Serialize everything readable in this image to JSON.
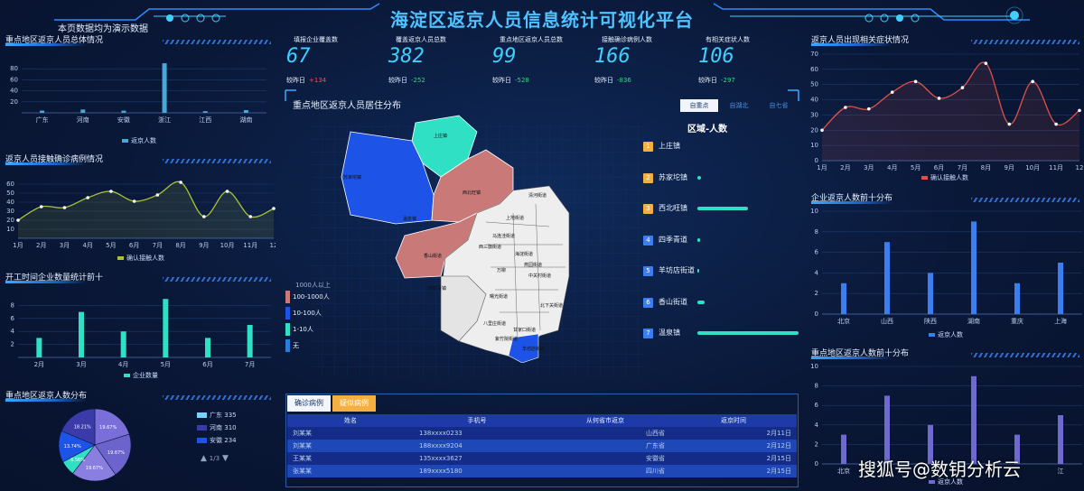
{
  "header": {
    "title": "海淀区返京人员信息统计可视化平台",
    "demo_note": "本页数据均为演示数据"
  },
  "kpis": [
    {
      "label": "填报企业覆盖数",
      "value": "67",
      "delta_label": "较昨日",
      "delta": "+134",
      "trend": "up"
    },
    {
      "label": "覆盖返京人员总数",
      "value": "382",
      "delta_label": "较昨日",
      "delta": "-252",
      "trend": "down"
    },
    {
      "label": "重点地区返京人员总数",
      "value": "99",
      "delta_label": "较昨日",
      "delta": "-528",
      "trend": "down"
    },
    {
      "label": "接触确诊病例人数",
      "value": "166",
      "delta_label": "较昨日",
      "delta": "-836",
      "trend": "down"
    },
    {
      "label": "有相关症状人数",
      "value": "106",
      "delta_label": "较昨日",
      "delta": "-297",
      "trend": "down"
    }
  ],
  "left": {
    "p1": {
      "title": "重点地区返京人员总体情况",
      "legend": "返京人数"
    },
    "p2": {
      "title": "返京人员接触确诊病例情况",
      "legend": "确认接触人数"
    },
    "p3": {
      "title": "开工时间企业数量统计前十",
      "legend": "企业数量"
    },
    "p4": {
      "title": "重点地区返京人数分布",
      "legend": [
        {
          "name": "广东",
          "value": "335"
        },
        {
          "name": "河南",
          "value": "310"
        },
        {
          "name": "安徽",
          "value": "234"
        }
      ],
      "pager": "1/3"
    }
  },
  "right": {
    "p1": {
      "title": "返京人员出现相关症状情况",
      "legend": "确认接触人数"
    },
    "p2": {
      "title": "企业返京人数前十分布",
      "legend": "返京人数"
    },
    "p3": {
      "title": "重点地区返京人数前十分布",
      "legend": "返京人数"
    }
  },
  "map": {
    "title": "重点地区返京人员居住分布",
    "tabs": [
      "自重点",
      "自湖北",
      "自七省"
    ],
    "rank_title": "区域-人数",
    "legend": [
      "1000人以上",
      "100-1000人",
      "10-100人",
      "1-10人",
      "无"
    ],
    "district_labels": [
      "上庄镇",
      "苏家坨镇",
      "西北旺镇",
      "温泉镇",
      "香山街道",
      "四季青镇",
      "清河街道",
      "上地街道",
      "西三旗街道",
      "马连洼街道",
      "燕园街道",
      "海淀街道",
      "中关村街道",
      "万柳",
      "曙光街道",
      "八里庄街道",
      "紫竹院街道",
      "北下关街道",
      "甘家口街道",
      "羊坊店街道"
    ],
    "rank": [
      {
        "no": "1",
        "name": "上庄镇",
        "pct": 0
      },
      {
        "no": "2",
        "name": "苏家坨镇",
        "pct": 4
      },
      {
        "no": "3",
        "name": "西北旺镇",
        "pct": 50
      },
      {
        "no": "4",
        "name": "四季青道",
        "pct": 3
      },
      {
        "no": "5",
        "name": "羊坊店街道",
        "pct": 1
      },
      {
        "no": "6",
        "name": "香山街道",
        "pct": 7
      },
      {
        "no": "7",
        "name": "温泉镇",
        "pct": 100
      }
    ]
  },
  "table": {
    "tabs": [
      "确诊病例",
      "疑似病例"
    ],
    "headers": [
      "姓名",
      "手机号",
      "从何省市返京",
      "返京时间"
    ],
    "rows": [
      [
        "刘某某",
        "138xxxx0233",
        "山西省",
        "2月11日"
      ],
      [
        "刘某某",
        "188xxxx9204",
        "广东省",
        "2月12日"
      ],
      [
        "王某某",
        "135xxxx3627",
        "安徽省",
        "2月15日"
      ],
      [
        "张某某",
        "189xxxx5180",
        "四川省",
        "2月15日"
      ]
    ]
  },
  "watermark": "搜狐号@数钥分析云",
  "chart_data": [
    {
      "id": "left-bar",
      "type": "bar",
      "categories": [
        "广东",
        "河南",
        "安徽",
        "浙江",
        "江西",
        "湖南"
      ],
      "ylim": [
        0,
        100
      ],
      "yticks": [
        20,
        40,
        60,
        80
      ],
      "series": [
        {
          "name": "返京人数",
          "values": [
            4,
            6,
            4,
            90,
            3,
            5
          ]
        }
      ]
    },
    {
      "id": "left-line",
      "type": "line",
      "categories": [
        "1月",
        "2月",
        "3月",
        "4月",
        "5月",
        "6月",
        "7月",
        "8月",
        "9月",
        "10月",
        "11月",
        "12"
      ],
      "ylim": [
        0,
        70
      ],
      "yticks": [
        10,
        20,
        30,
        40,
        50,
        60
      ],
      "series": [
        {
          "name": "确认接触人数",
          "values": [
            20,
            35,
            34,
            45,
            52,
            41,
            48,
            62,
            24,
            52,
            24,
            33
          ]
        }
      ]
    },
    {
      "id": "left-bar2",
      "type": "bar",
      "categories": [
        "2月",
        "3月",
        "4月",
        "5月",
        "6月",
        "7月"
      ],
      "ylim": [
        0,
        10
      ],
      "yticks": [
        2,
        4,
        6,
        8
      ],
      "series": [
        {
          "name": "企业数量",
          "values": [
            3,
            7,
            4,
            9,
            3,
            5
          ]
        }
      ]
    },
    {
      "id": "left-pie",
      "type": "pie",
      "slices": [
        {
          "label": "19.67%",
          "value": 19.67,
          "color": "#7a6fd8"
        },
        {
          "label": "19.67%",
          "value": 19.67,
          "color": "#6d63cc"
        },
        {
          "label": "19.67%",
          "value": 19.67,
          "color": "#8a7fe0"
        },
        {
          "label": "6.56%",
          "value": 6.56,
          "color": "#2fe0c4"
        },
        {
          "label": "13.74%",
          "value": 13.74,
          "color": "#1d53e6"
        },
        {
          "label": "18.21%",
          "value": 18.21,
          "color": "#3a3aa8"
        }
      ]
    },
    {
      "id": "right-line",
      "type": "line",
      "categories": [
        "1月",
        "2月",
        "3月",
        "4月",
        "5月",
        "6月",
        "7月",
        "8月",
        "9月",
        "10月",
        "11月",
        "12"
      ],
      "ylim": [
        0,
        70
      ],
      "yticks": [
        0,
        10,
        20,
        30,
        40,
        50,
        60,
        70
      ],
      "series": [
        {
          "name": "确认接触人数",
          "values": [
            20,
            35,
            34,
            45,
            52,
            41,
            48,
            64,
            24,
            52,
            24,
            33
          ]
        }
      ]
    },
    {
      "id": "right-bar1",
      "type": "bar",
      "categories": [
        "北京",
        "山西",
        "陕西",
        "湖南",
        "重庆",
        "上海"
      ],
      "ylim": [
        0,
        10
      ],
      "yticks": [
        0,
        2,
        4,
        6,
        8,
        10
      ],
      "series": [
        {
          "name": "返京人数",
          "values": [
            3,
            7,
            4,
            9,
            3,
            5
          ]
        }
      ]
    },
    {
      "id": "right-bar2",
      "type": "bar",
      "categories": [
        "北京",
        "",
        "",
        "",
        "",
        "江"
      ],
      "ylim": [
        0,
        10
      ],
      "yticks": [
        0,
        2,
        4,
        6,
        8,
        10
      ],
      "series": [
        {
          "name": "返京人数",
          "values": [
            3,
            7,
            4,
            9,
            3,
            5
          ]
        }
      ]
    }
  ]
}
